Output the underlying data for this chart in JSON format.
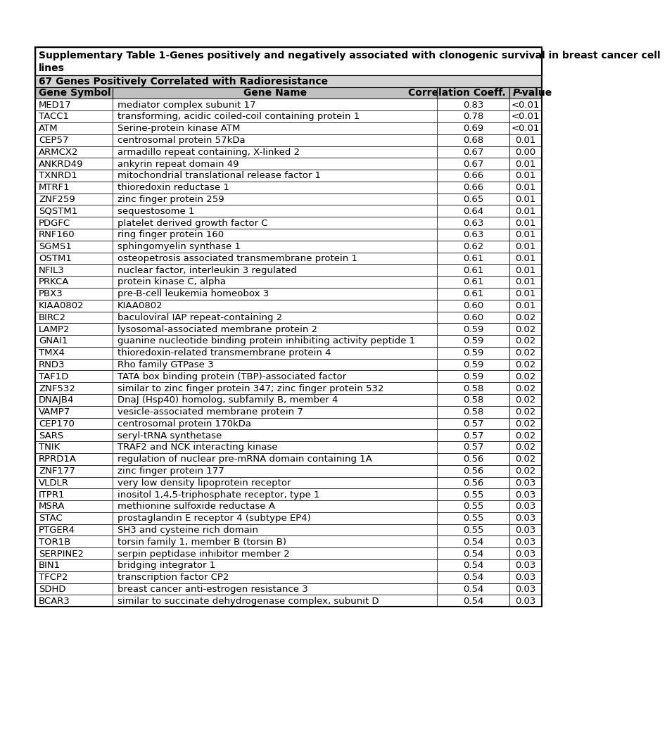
{
  "title_line1": "Supplementary Table 1-Genes positively and negatively associated with clonogenic survival in breast cancer cell",
  "title_line2": "lines",
  "section_header": "67 Genes Positively Correlated with Radioresistance",
  "col_headers": [
    "Gene Symbol",
    "Gene Name",
    "Correlation Coeff.",
    "P -value"
  ],
  "rows": [
    [
      "MED17",
      "mediator complex subunit 17",
      "0.83",
      "<0.01"
    ],
    [
      "TACC1",
      "transforming, acidic coiled-coil containing protein 1",
      "0.78",
      "<0.01"
    ],
    [
      "ATM",
      "Serine-protein kinase ATM",
      "0.69",
      "<0.01"
    ],
    [
      "CEP57",
      "centrosomal protein 57kDa",
      "0.68",
      "0.01"
    ],
    [
      "ARMCX2",
      "armadillo repeat containing, X-linked 2",
      "0.67",
      "0.00"
    ],
    [
      "ANKRD49",
      "ankyrin repeat domain 49",
      "0.67",
      "0.01"
    ],
    [
      "TXNRD1",
      "mitochondrial translational release factor 1",
      "0.66",
      "0.01"
    ],
    [
      "MTRF1",
      "thioredoxin reductase 1",
      "0.66",
      "0.01"
    ],
    [
      "ZNF259",
      "zinc finger protein 259",
      "0.65",
      "0.01"
    ],
    [
      "SQSTM1",
      "sequestosome 1",
      "0.64",
      "0.01"
    ],
    [
      "PDGFC",
      "platelet derived growth factor C",
      "0.63",
      "0.01"
    ],
    [
      "RNF160",
      "ring finger protein 160",
      "0.63",
      "0.01"
    ],
    [
      "SGMS1",
      "sphingomyelin synthase 1",
      "0.62",
      "0.01"
    ],
    [
      "OSTM1",
      "osteopetrosis associated transmembrane protein 1",
      "0.61",
      "0.01"
    ],
    [
      "NFIL3",
      "nuclear factor, interleukin 3 regulated",
      "0.61",
      "0.01"
    ],
    [
      "PRKCA",
      "protein kinase C, alpha",
      "0.61",
      "0.01"
    ],
    [
      "PBX3",
      "pre-B-cell leukemia homeobox 3",
      "0.61",
      "0.01"
    ],
    [
      "KIAA0802",
      "KIAA0802",
      "0.60",
      "0.01"
    ],
    [
      "BIRC2",
      "baculoviral IAP repeat-containing 2",
      "0.60",
      "0.02"
    ],
    [
      "LAMP2",
      "lysosomal-associated membrane protein 2",
      "0.59",
      "0.02"
    ],
    [
      "GNAI1",
      "guanine nucleotide binding protein inhibiting activity peptide 1",
      "0.59",
      "0.02"
    ],
    [
      "TMX4",
      "thioredoxin-related transmembrane protein 4",
      "0.59",
      "0.02"
    ],
    [
      "RND3",
      "Rho family GTPase 3",
      "0.59",
      "0.02"
    ],
    [
      "TAF1D",
      "TATA box binding protein (TBP)-associated factor",
      "0.59",
      "0.02"
    ],
    [
      "ZNF532",
      "similar to zinc finger protein 347; zinc finger protein 532",
      "0.58",
      "0.02"
    ],
    [
      "DNAJB4",
      "DnaJ (Hsp40) homolog, subfamily B, member 4",
      "0.58",
      "0.02"
    ],
    [
      "VAMP7",
      "vesicle-associated membrane protein 7",
      "0.58",
      "0.02"
    ],
    [
      "CEP170",
      "centrosomal protein 170kDa",
      "0.57",
      "0.02"
    ],
    [
      "SARS",
      "seryl-tRNA synthetase",
      "0.57",
      "0.02"
    ],
    [
      "TNIK",
      "TRAF2 and NCK interacting kinase",
      "0.57",
      "0.02"
    ],
    [
      "RPRD1A",
      "regulation of nuclear pre-mRNA domain containing 1A",
      "0.56",
      "0.02"
    ],
    [
      "ZNF177",
      "zinc finger protein 177",
      "0.56",
      "0.02"
    ],
    [
      "VLDLR",
      "very low density lipoprotein receptor",
      "0.56",
      "0.03"
    ],
    [
      "ITPR1",
      "inositol 1,4,5-triphosphate receptor, type 1",
      "0.55",
      "0.03"
    ],
    [
      "MSRA",
      "methionine sulfoxide reductase A",
      "0.55",
      "0.03"
    ],
    [
      "STAC",
      "prostaglandin E receptor 4 (subtype EP4)",
      "0.55",
      "0.03"
    ],
    [
      "PTGER4",
      "SH3 and cysteine rich domain",
      "0.55",
      "0.03"
    ],
    [
      "TOR1B",
      "torsin family 1, member B (torsin B)",
      "0.54",
      "0.03"
    ],
    [
      "SERPINE2",
      "serpin peptidase inhibitor member 2",
      "0.54",
      "0.03"
    ],
    [
      "BIN1",
      "bridging integrator 1",
      "0.54",
      "0.03"
    ],
    [
      "TFCP2",
      "transcription factor CP2",
      "0.54",
      "0.03"
    ],
    [
      "SDHD",
      "breast cancer anti-estrogen resistance 3",
      "0.54",
      "0.03"
    ],
    [
      "BCAR3",
      "similar to succinate dehydrogenase complex, subunit D",
      "0.54",
      "0.03"
    ]
  ],
  "bg_color_title": "#ffffff",
  "bg_color_section": "#d3d3d3",
  "bg_color_header": "#c0c0c0",
  "bg_color_row": "#ffffff",
  "border_color": "#000000",
  "text_color": "#000000",
  "font_size": 9.5,
  "header_font_size": 10.0,
  "title_font_size": 10.0
}
